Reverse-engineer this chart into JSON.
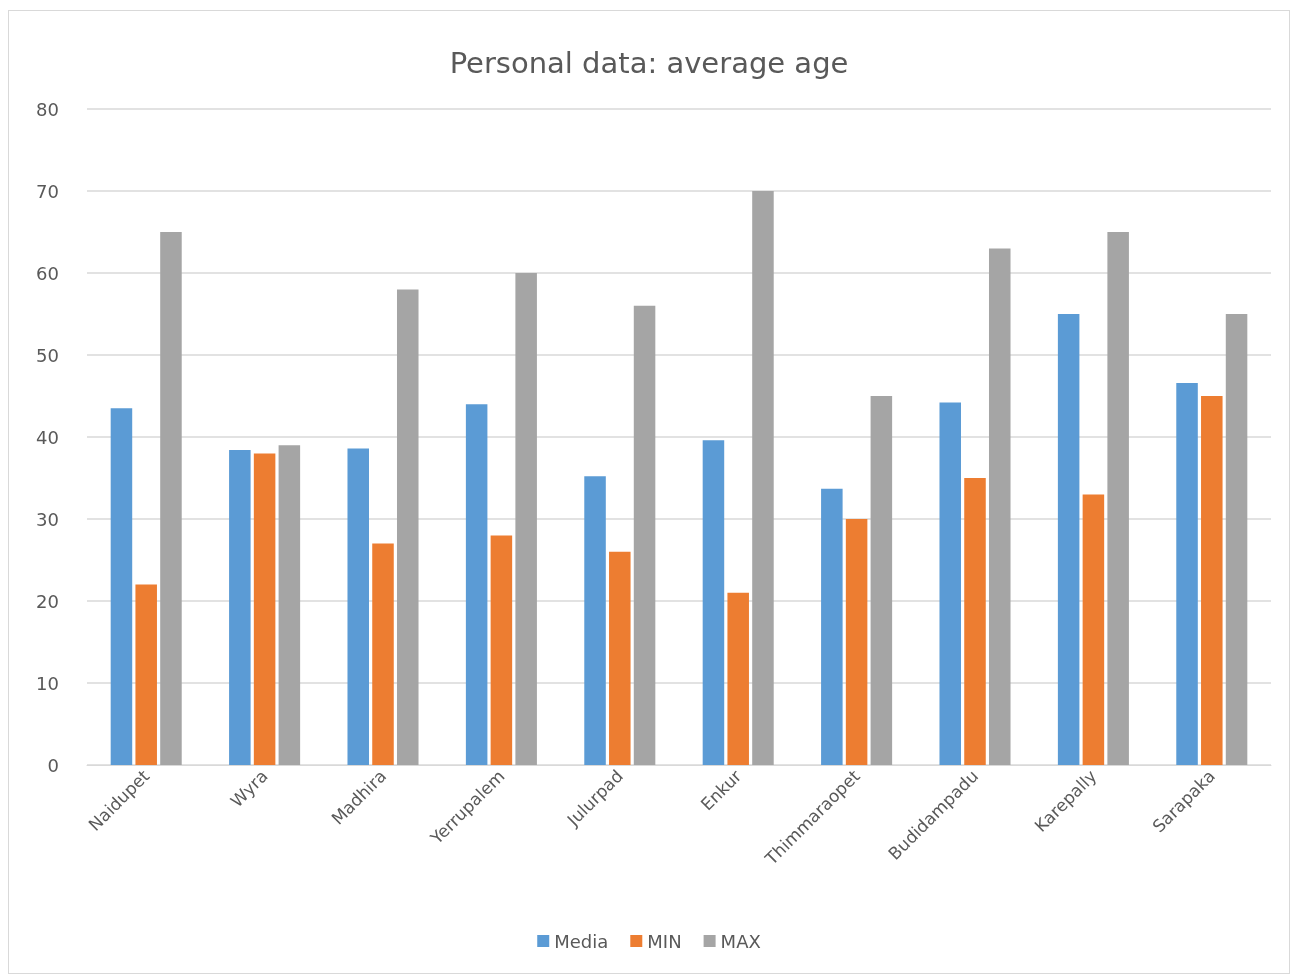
{
  "chart_data": {
    "type": "bar",
    "title": "Personal data: average age",
    "categories": [
      "Naidupet",
      "Wyra",
      "Madhira",
      "Yerrupalem",
      "Julurpad",
      "Enkur",
      "Thimmaraopet",
      "Budidampadu",
      "Karepally",
      "Sarapaka"
    ],
    "series": [
      {
        "name": "Media",
        "color": "#5b9bd5",
        "values": [
          43.5,
          38.4,
          38.6,
          44.0,
          35.2,
          39.6,
          33.7,
          44.2,
          55,
          46.6
        ]
      },
      {
        "name": "MIN",
        "color": "#ed7d31",
        "values": [
          22,
          38,
          27,
          28,
          26,
          21,
          30,
          35,
          33,
          45
        ]
      },
      {
        "name": "MAX",
        "color": "#a5a5a5",
        "values": [
          65,
          39,
          58,
          60,
          56,
          70,
          45,
          63,
          65,
          55
        ]
      }
    ],
    "ylim": [
      0,
      80
    ],
    "yticks": [
      0,
      10,
      20,
      30,
      40,
      50,
      60,
      70,
      80
    ],
    "grid": "y",
    "legend": "bottom"
  }
}
